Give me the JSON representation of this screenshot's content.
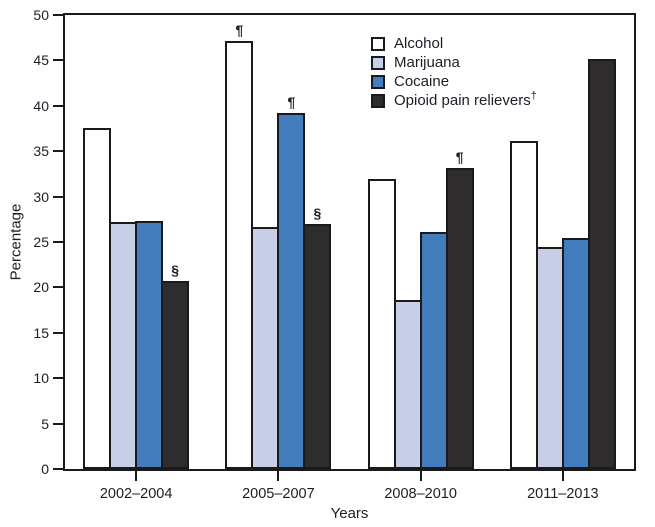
{
  "chart_data": {
    "type": "bar",
    "title": "",
    "xlabel": "Years",
    "ylabel": "Percentage",
    "ylim": [
      0,
      50
    ],
    "yticks": [
      0,
      5,
      10,
      15,
      20,
      25,
      30,
      35,
      40,
      45,
      50
    ],
    "grid": false,
    "legend_position": "top-center",
    "categories": [
      "2002–2004",
      "2005–2007",
      "2008–2010",
      "2011–2013"
    ],
    "series": [
      {
        "name": "Alcohol",
        "legend_suffix": "",
        "color": "#ffffff",
        "values": [
          37.6,
          47.1,
          31.9,
          36.1
        ],
        "annotations": [
          "",
          "¶",
          "",
          ""
        ]
      },
      {
        "name": "Marijuana",
        "legend_suffix": "",
        "color": "#c6cfe5",
        "values": [
          27.2,
          26.6,
          18.6,
          24.4
        ],
        "annotations": [
          "",
          "",
          "",
          ""
        ]
      },
      {
        "name": "Cocaine",
        "legend_suffix": "",
        "color": "#437cbc",
        "values": [
          27.3,
          39.2,
          26.1,
          25.4
        ],
        "annotations": [
          "",
          "¶",
          "",
          ""
        ]
      },
      {
        "name": "Opioid pain relievers",
        "legend_suffix": "†",
        "color": "#2e2c2d",
        "values": [
          20.7,
          27.0,
          33.2,
          45.2
        ],
        "annotations": [
          "§",
          "§",
          "¶",
          ""
        ]
      }
    ],
    "colors": {
      "axis": "#1a1a1a",
      "text": "#1d1d28",
      "background": "#ffffff"
    }
  }
}
